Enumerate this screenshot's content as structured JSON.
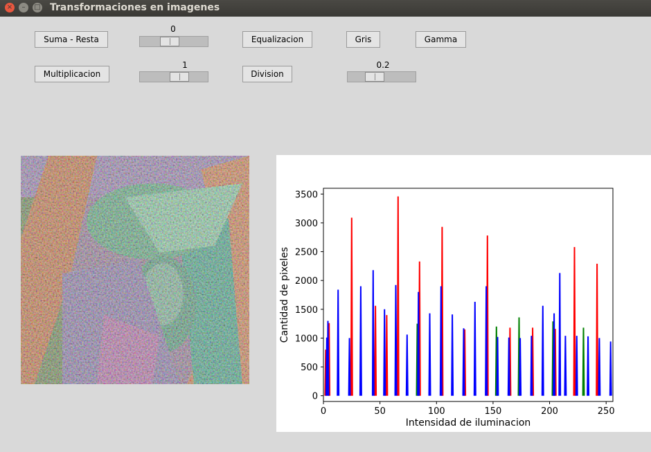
{
  "window": {
    "title": "Transformaciones en imagenes"
  },
  "window_controls": {
    "close": "×",
    "minimize": "–",
    "maximize": "□"
  },
  "buttons": {
    "suma_resta": "Suma - Resta",
    "equalizacion": "Equalizacion",
    "gris": "Gris",
    "gamma": "Gamma",
    "multiplicacion": "Multiplicacion",
    "division": "Division"
  },
  "sliders": {
    "suma_resta": {
      "value": "0",
      "fraction": 0.41
    },
    "multiplicacion": {
      "value": "1",
      "fraction": 0.62
    },
    "gamma": {
      "value": "0.2",
      "fraction": 0.36
    }
  },
  "image": {
    "icon": "processed-lena-image"
  },
  "chart_data": {
    "type": "line",
    "title": "",
    "xlabel": "Intensidad de iluminacion",
    "ylabel": "Cantidad de pixeles",
    "xlim": [
      0,
      256
    ],
    "ylim": [
      -100,
      3600
    ],
    "xticks": [
      0,
      50,
      100,
      150,
      200,
      250
    ],
    "yticks": [
      0,
      500,
      1000,
      1500,
      2000,
      2500,
      3000,
      3500
    ],
    "grid": false,
    "colors": {
      "red": "#ff0000",
      "green": "#008000",
      "blue": "#0000ff"
    },
    "series": [
      {
        "color": "red",
        "peaks": [
          [
            2,
            800
          ],
          [
            5,
            1260
          ],
          [
            25,
            3090
          ],
          [
            46,
            1560
          ],
          [
            56,
            1400
          ],
          [
            66,
            3460
          ],
          [
            85,
            2330
          ],
          [
            105,
            2930
          ],
          [
            125,
            1150
          ],
          [
            145,
            2780
          ],
          [
            165,
            1180
          ],
          [
            185,
            1180
          ],
          [
            205,
            1160
          ],
          [
            222,
            2580
          ],
          [
            242,
            2290
          ]
        ]
      },
      {
        "color": "green",
        "peaks": [
          [
            83,
            1250
          ],
          [
            153,
            1200
          ],
          [
            173,
            1360
          ],
          [
            203,
            1290
          ],
          [
            230,
            1180
          ]
        ]
      },
      {
        "color": "blue",
        "peaks": [
          [
            3,
            1010
          ],
          [
            4,
            1300
          ],
          [
            13,
            1840
          ],
          [
            23,
            1000
          ],
          [
            33,
            1900
          ],
          [
            44,
            2180
          ],
          [
            54,
            1500
          ],
          [
            64,
            1920
          ],
          [
            74,
            1060
          ],
          [
            84,
            1800
          ],
          [
            94,
            1430
          ],
          [
            104,
            1900
          ],
          [
            114,
            1410
          ],
          [
            124,
            1170
          ],
          [
            134,
            1630
          ],
          [
            144,
            1900
          ],
          [
            154,
            1020
          ],
          [
            164,
            1010
          ],
          [
            174,
            1000
          ],
          [
            184,
            1040
          ],
          [
            194,
            1560
          ],
          [
            204,
            1430
          ],
          [
            209,
            2130
          ],
          [
            214,
            1040
          ],
          [
            224,
            1040
          ],
          [
            234,
            1030
          ],
          [
            244,
            1000
          ],
          [
            254,
            940
          ]
        ]
      }
    ]
  }
}
